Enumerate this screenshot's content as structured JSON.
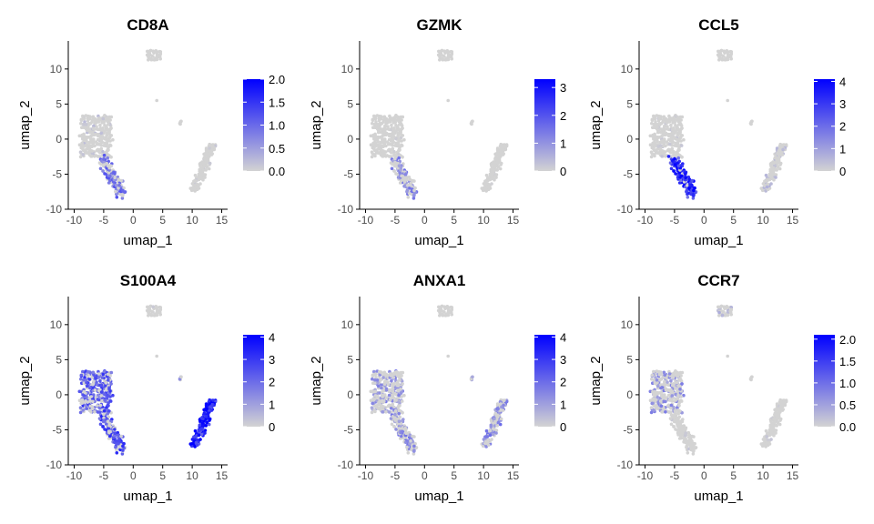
{
  "chart_data": [
    {
      "type": "scatter",
      "title": "CD8A",
      "xlabel": "umap_1",
      "ylabel": "umap_2",
      "xlim": [
        -11,
        16
      ],
      "ylim": [
        -10,
        14
      ],
      "xticks": [
        -10,
        -5,
        0,
        5,
        10,
        15
      ],
      "yticks": [
        -10,
        -5,
        0,
        5,
        10
      ],
      "colorbar": {
        "min": 0,
        "max": 2.0,
        "ticks": [
          "0.0",
          "0.5",
          "1.0",
          "1.5",
          "2.0"
        ],
        "low_color": "#d3d3d3",
        "high_color": "#0000ff"
      },
      "expression": {
        "cluster_left_top": 0.08,
        "cluster_left_stem": 0.45,
        "cluster_top": 0.0,
        "cluster_right": 0.05,
        "cluster_small": 0.0
      }
    },
    {
      "type": "scatter",
      "title": "GZMK",
      "xlabel": "umap_1",
      "ylabel": "umap_2",
      "xlim": [
        -11,
        16
      ],
      "ylim": [
        -10,
        14
      ],
      "xticks": [
        -10,
        -5,
        0,
        5,
        10,
        15
      ],
      "yticks": [
        -10,
        -5,
        0,
        5,
        10
      ],
      "colorbar": {
        "min": 0,
        "max": 3.3,
        "ticks": [
          "0",
          "1",
          "2",
          "3"
        ],
        "low_color": "#d3d3d3",
        "high_color": "#0000ff"
      },
      "expression": {
        "cluster_left_top": 0.03,
        "cluster_left_stem": 0.35,
        "cluster_top": 0.0,
        "cluster_right": 0.02,
        "cluster_small": 0.0
      }
    },
    {
      "type": "scatter",
      "title": "CCL5",
      "xlabel": "umap_1",
      "ylabel": "umap_2",
      "xlim": [
        -11,
        16
      ],
      "ylim": [
        -10,
        14
      ],
      "xticks": [
        -10,
        -5,
        0,
        5,
        10,
        15
      ],
      "yticks": [
        -10,
        -5,
        0,
        5,
        10
      ],
      "colorbar": {
        "min": 0,
        "max": 4.1,
        "ticks": [
          "0",
          "1",
          "2",
          "3",
          "4"
        ],
        "low_color": "#d3d3d3",
        "high_color": "#0000ff"
      },
      "expression": {
        "cluster_left_top": 0.05,
        "cluster_left_stem": 0.75,
        "cluster_top": 0.0,
        "cluster_right": 0.12,
        "cluster_small": 0.0
      }
    },
    {
      "type": "scatter",
      "title": "S100A4",
      "xlabel": "umap_1",
      "ylabel": "umap_2",
      "xlim": [
        -11,
        16
      ],
      "ylim": [
        -10,
        14
      ],
      "xticks": [
        -10,
        -5,
        0,
        5,
        10,
        15
      ],
      "yticks": [
        -10,
        -5,
        0,
        5,
        10
      ],
      "colorbar": {
        "min": 0,
        "max": 4.1,
        "ticks": [
          "0",
          "1",
          "2",
          "3",
          "4"
        ],
        "low_color": "#d3d3d3",
        "high_color": "#0000ff"
      },
      "expression": {
        "cluster_left_top": 0.55,
        "cluster_left_stem": 0.6,
        "cluster_top": 0.03,
        "cluster_right": 0.85,
        "cluster_small": 0.5
      }
    },
    {
      "type": "scatter",
      "title": "ANXA1",
      "xlabel": "umap_1",
      "ylabel": "umap_2",
      "xlim": [
        -11,
        16
      ],
      "ylim": [
        -10,
        14
      ],
      "xticks": [
        -10,
        -5,
        0,
        5,
        10,
        15
      ],
      "yticks": [
        -10,
        -5,
        0,
        5,
        10
      ],
      "colorbar": {
        "min": 0,
        "max": 4.1,
        "ticks": [
          "0",
          "1",
          "2",
          "3",
          "4"
        ],
        "low_color": "#d3d3d3",
        "high_color": "#0000ff"
      },
      "expression": {
        "cluster_left_top": 0.3,
        "cluster_left_stem": 0.35,
        "cluster_top": 0.0,
        "cluster_right": 0.35,
        "cluster_small": 0.2
      }
    },
    {
      "type": "scatter",
      "title": "CCR7",
      "xlabel": "umap_1",
      "ylabel": "umap_2",
      "xlim": [
        -11,
        16
      ],
      "ylim": [
        -10,
        14
      ],
      "xticks": [
        -10,
        -5,
        0,
        5,
        10,
        15
      ],
      "yticks": [
        -10,
        -5,
        0,
        5,
        10
      ],
      "colorbar": {
        "min": 0,
        "max": 2.1,
        "ticks": [
          "0.0",
          "0.5",
          "1.0",
          "1.5",
          "2.0"
        ],
        "low_color": "#d3d3d3",
        "high_color": "#0000ff"
      },
      "expression": {
        "cluster_left_top": 0.3,
        "cluster_left_stem": 0.05,
        "cluster_top": 0.15,
        "cluster_right": 0.05,
        "cluster_small": 0.0
      }
    }
  ]
}
